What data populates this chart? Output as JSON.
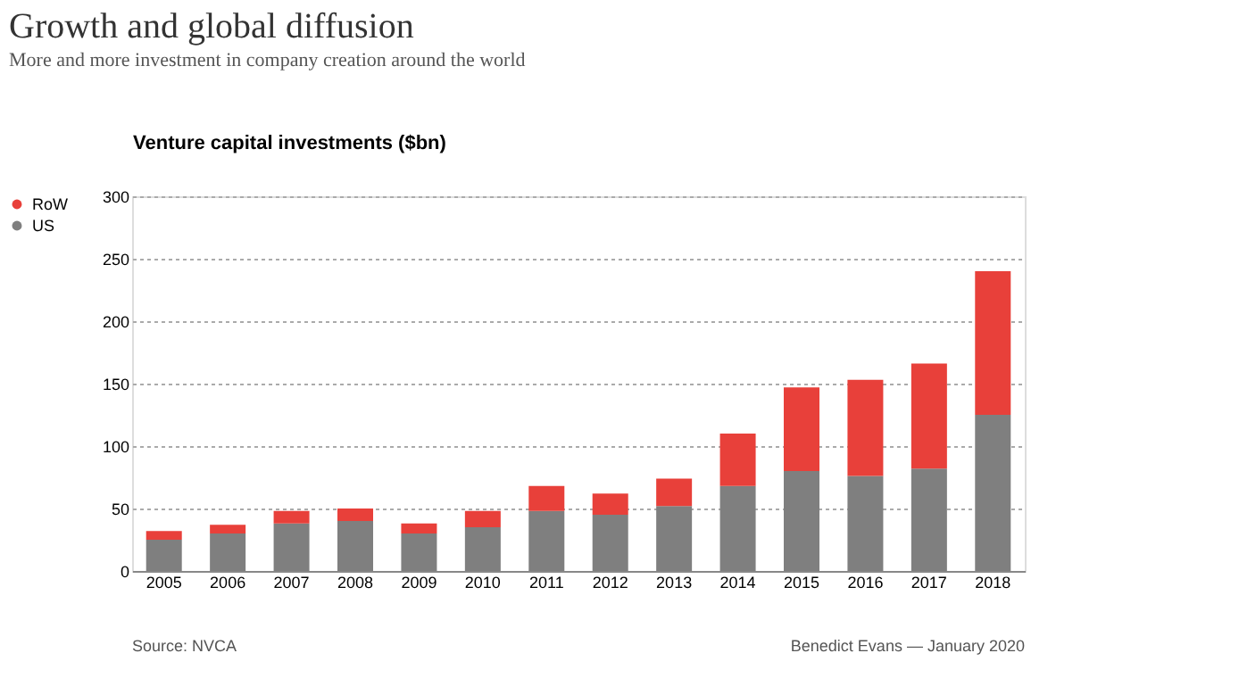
{
  "chart_data": {
    "type": "bar",
    "stacked": true,
    "title": "Growth and global diffusion",
    "subtitle": "More and more investment in company creation around the world",
    "ylabel": "Venture capital investments ($bn)",
    "categories": [
      "2005",
      "2006",
      "2007",
      "2008",
      "2009",
      "2010",
      "2011",
      "2012",
      "2013",
      "2014",
      "2015",
      "2016",
      "2017",
      "2018"
    ],
    "series": [
      {
        "name": "US",
        "color": "#7f7f7f",
        "values": [
          25,
          30,
          38,
          40,
          30,
          35,
          48,
          45,
          52,
          68,
          80,
          76,
          82,
          125
        ]
      },
      {
        "name": "RoW",
        "color": "#e8403a",
        "values": [
          7,
          7,
          10,
          10,
          8,
          13,
          20,
          17,
          22,
          42,
          67,
          77,
          84,
          115
        ]
      }
    ],
    "ylim": [
      0,
      300
    ],
    "yticks": [
      0,
      50,
      100,
      150,
      200,
      250,
      300
    ],
    "grid": "y",
    "legend": "left",
    "annotations": [
      "Source: NVCA",
      "Benedict Evans — January 2020"
    ]
  }
}
